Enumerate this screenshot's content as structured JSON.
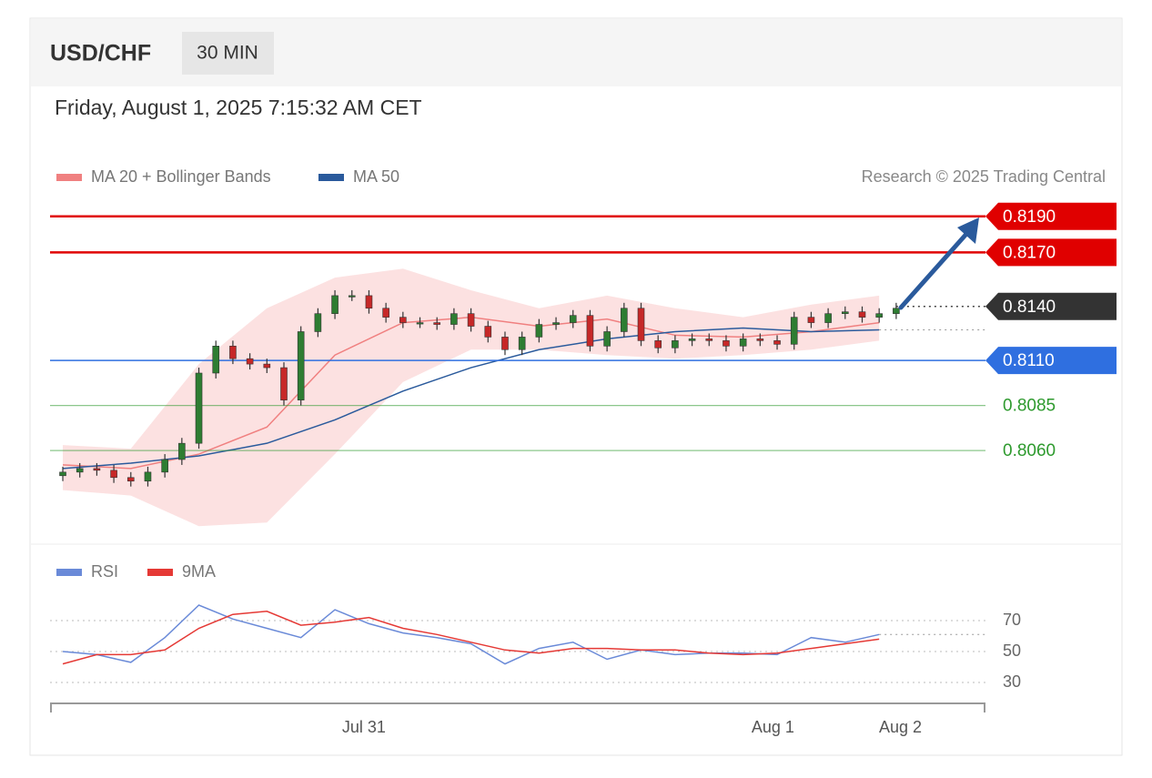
{
  "header": {
    "symbol": "USD/CHF",
    "interval": "30 MIN",
    "timestamp": "Friday, August 1, 2025 7:15:32 AM CET",
    "copyright": "Research © 2025 Trading Central"
  },
  "chart_data": [
    {
      "type": "candlestick",
      "xlim": [
        -0.5,
        109.5
      ],
      "ylim": [
        0.8008,
        0.8199
      ],
      "up_color": "#2e7d32",
      "down_color": "#c62828",
      "x": [
        1,
        3,
        5,
        7,
        9,
        11,
        13,
        15,
        17,
        19,
        21,
        23,
        25,
        27,
        29,
        31,
        33,
        35,
        37,
        39,
        41,
        43,
        45,
        47,
        49,
        51,
        53,
        55,
        57,
        59,
        61,
        63,
        65,
        67,
        69,
        71,
        73,
        75,
        77,
        79,
        81,
        83,
        85,
        87,
        89,
        91,
        93,
        95,
        97,
        99
      ],
      "open": [
        0.8046,
        0.8048,
        0.805,
        0.8049,
        0.8045,
        0.8043,
        0.8048,
        0.8055,
        0.8064,
        0.8103,
        0.8118,
        0.8111,
        0.8108,
        0.8106,
        0.8088,
        0.8126,
        0.8136,
        0.8146,
        0.8146,
        0.8139,
        0.8134,
        0.8131,
        0.8131,
        0.813,
        0.8136,
        0.8129,
        0.8123,
        0.8116,
        0.8123,
        0.813,
        0.8131,
        0.8135,
        0.8118,
        0.8126,
        0.8139,
        0.8121,
        0.8117,
        0.8121,
        0.8122,
        0.8121,
        0.8118,
        0.8122,
        0.8121,
        0.8119,
        0.8134,
        0.8131,
        0.8136,
        0.8137,
        0.8134,
        0.8136
      ],
      "high": [
        0.8051,
        0.8053,
        0.8053,
        0.8052,
        0.8048,
        0.8051,
        0.8058,
        0.8067,
        0.8106,
        0.8121,
        0.8121,
        0.8114,
        0.8111,
        0.8109,
        0.8129,
        0.8139,
        0.8149,
        0.8149,
        0.8149,
        0.8142,
        0.8137,
        0.8134,
        0.8134,
        0.8139,
        0.8139,
        0.8132,
        0.8126,
        0.8126,
        0.8133,
        0.8134,
        0.8138,
        0.8138,
        0.8129,
        0.8142,
        0.8142,
        0.8124,
        0.8124,
        0.8125,
        0.8125,
        0.8124,
        0.8125,
        0.8125,
        0.8124,
        0.8137,
        0.8137,
        0.8139,
        0.814,
        0.814,
        0.8139,
        0.8142
      ],
      "low": [
        0.8043,
        0.8045,
        0.8046,
        0.8042,
        0.804,
        0.804,
        0.8045,
        0.8052,
        0.8061,
        0.81,
        0.8108,
        0.8105,
        0.8103,
        0.8085,
        0.8085,
        0.8123,
        0.8133,
        0.8143,
        0.8136,
        0.8131,
        0.8128,
        0.8128,
        0.8127,
        0.8127,
        0.8126,
        0.812,
        0.8113,
        0.8113,
        0.812,
        0.8127,
        0.8128,
        0.8115,
        0.8115,
        0.8123,
        0.8118,
        0.8114,
        0.8114,
        0.8118,
        0.8118,
        0.8115,
        0.8115,
        0.8118,
        0.8116,
        0.8116,
        0.8128,
        0.8128,
        0.8133,
        0.8131,
        0.8131,
        0.8133
      ],
      "close": [
        0.8048,
        0.805,
        0.8049,
        0.8045,
        0.8043,
        0.8048,
        0.8055,
        0.8064,
        0.8103,
        0.8118,
        0.8111,
        0.8108,
        0.8106,
        0.8088,
        0.8126,
        0.8136,
        0.8146,
        0.8146,
        0.8139,
        0.8134,
        0.8131,
        0.8131,
        0.813,
        0.8136,
        0.8129,
        0.8123,
        0.8116,
        0.8123,
        0.813,
        0.8131,
        0.8135,
        0.8118,
        0.8126,
        0.8139,
        0.8121,
        0.8117,
        0.8121,
        0.8122,
        0.8121,
        0.8118,
        0.8122,
        0.8121,
        0.8119,
        0.8134,
        0.8131,
        0.8136,
        0.8137,
        0.8134,
        0.8136,
        0.8139
      ],
      "series": [
        {
          "name": "MA 20 + Bollinger Bands",
          "color": "#f08080",
          "band_color": "#fbdada",
          "x": [
            1,
            9,
            17,
            25,
            33,
            41,
            49,
            57,
            65,
            73,
            81,
            89,
            97
          ],
          "values": [
            0.8052,
            0.805,
            0.8058,
            0.8073,
            0.8113,
            0.8131,
            0.8134,
            0.8129,
            0.8133,
            0.8124,
            0.8123,
            0.8126,
            0.8131
          ],
          "upper": [
            0.8063,
            0.8061,
            0.8108,
            0.8139,
            0.8156,
            0.8161,
            0.8149,
            0.8139,
            0.8146,
            0.8139,
            0.8134,
            0.8141,
            0.8146
          ],
          "lower": [
            0.8038,
            0.8035,
            0.8018,
            0.802,
            0.8058,
            0.8098,
            0.8116,
            0.8116,
            0.8113,
            0.8111,
            0.8113,
            0.8116,
            0.8121
          ]
        },
        {
          "name": "MA 50",
          "color": "#2a5a9c",
          "x": [
            1,
            9,
            17,
            25,
            33,
            41,
            49,
            57,
            65,
            73,
            81,
            89,
            97
          ],
          "values": [
            0.805,
            0.8053,
            0.8057,
            0.8064,
            0.8077,
            0.8093,
            0.8106,
            0.8116,
            0.8122,
            0.8126,
            0.8128,
            0.8126,
            0.8127
          ]
        }
      ],
      "levels": [
        {
          "value": 0.819,
          "label": "0.8190",
          "color": "#e00000",
          "style": "solid",
          "boxed": true
        },
        {
          "value": 0.817,
          "label": "0.8170",
          "color": "#e00000",
          "style": "solid",
          "boxed": true
        },
        {
          "value": 0.814,
          "label": "0.8140",
          "color": "#333333",
          "style": "dotted",
          "boxed": true
        },
        {
          "value": 0.811,
          "label": "0.8110",
          "color": "#2f6fe0",
          "style": "solid",
          "boxed": true
        },
        {
          "value": 0.8085,
          "label": "0.8085",
          "color": "#2e9a2e",
          "style": "solid",
          "boxed": false
        },
        {
          "value": 0.806,
          "label": "0.8060",
          "color": "#2e9a2e",
          "style": "solid",
          "boxed": false
        }
      ]
    },
    {
      "type": "line",
      "xlim": [
        -0.5,
        109.5
      ],
      "ylim": [
        10,
        90
      ],
      "yticks": [
        30,
        50,
        70
      ],
      "xticks": [
        {
          "value": 36.4,
          "label": "Jul 31"
        },
        {
          "value": 84.5,
          "label": "Aug 1"
        },
        {
          "value": 99.5,
          "label": "Aug 2"
        }
      ],
      "x": [
        1,
        5,
        9,
        13,
        17,
        21,
        25,
        29,
        33,
        37,
        41,
        45,
        49,
        53,
        57,
        61,
        65,
        69,
        73,
        77,
        81,
        85,
        89,
        93,
        97
      ],
      "series": [
        {
          "name": "RSI",
          "color": "#6a8ad8",
          "values": [
            50,
            48,
            43,
            59,
            80,
            71,
            65,
            59,
            77,
            68,
            62,
            59,
            55,
            42,
            52,
            56,
            45,
            51,
            48,
            49,
            49,
            48,
            59,
            56,
            61
          ]
        },
        {
          "name": "9MA",
          "color": "#e53935",
          "values": [
            42,
            48,
            48,
            51,
            65,
            74,
            76,
            67,
            69,
            72,
            65,
            61,
            56,
            51,
            49,
            52,
            52,
            51,
            51,
            49,
            48,
            49,
            52,
            55,
            58
          ]
        }
      ]
    }
  ]
}
